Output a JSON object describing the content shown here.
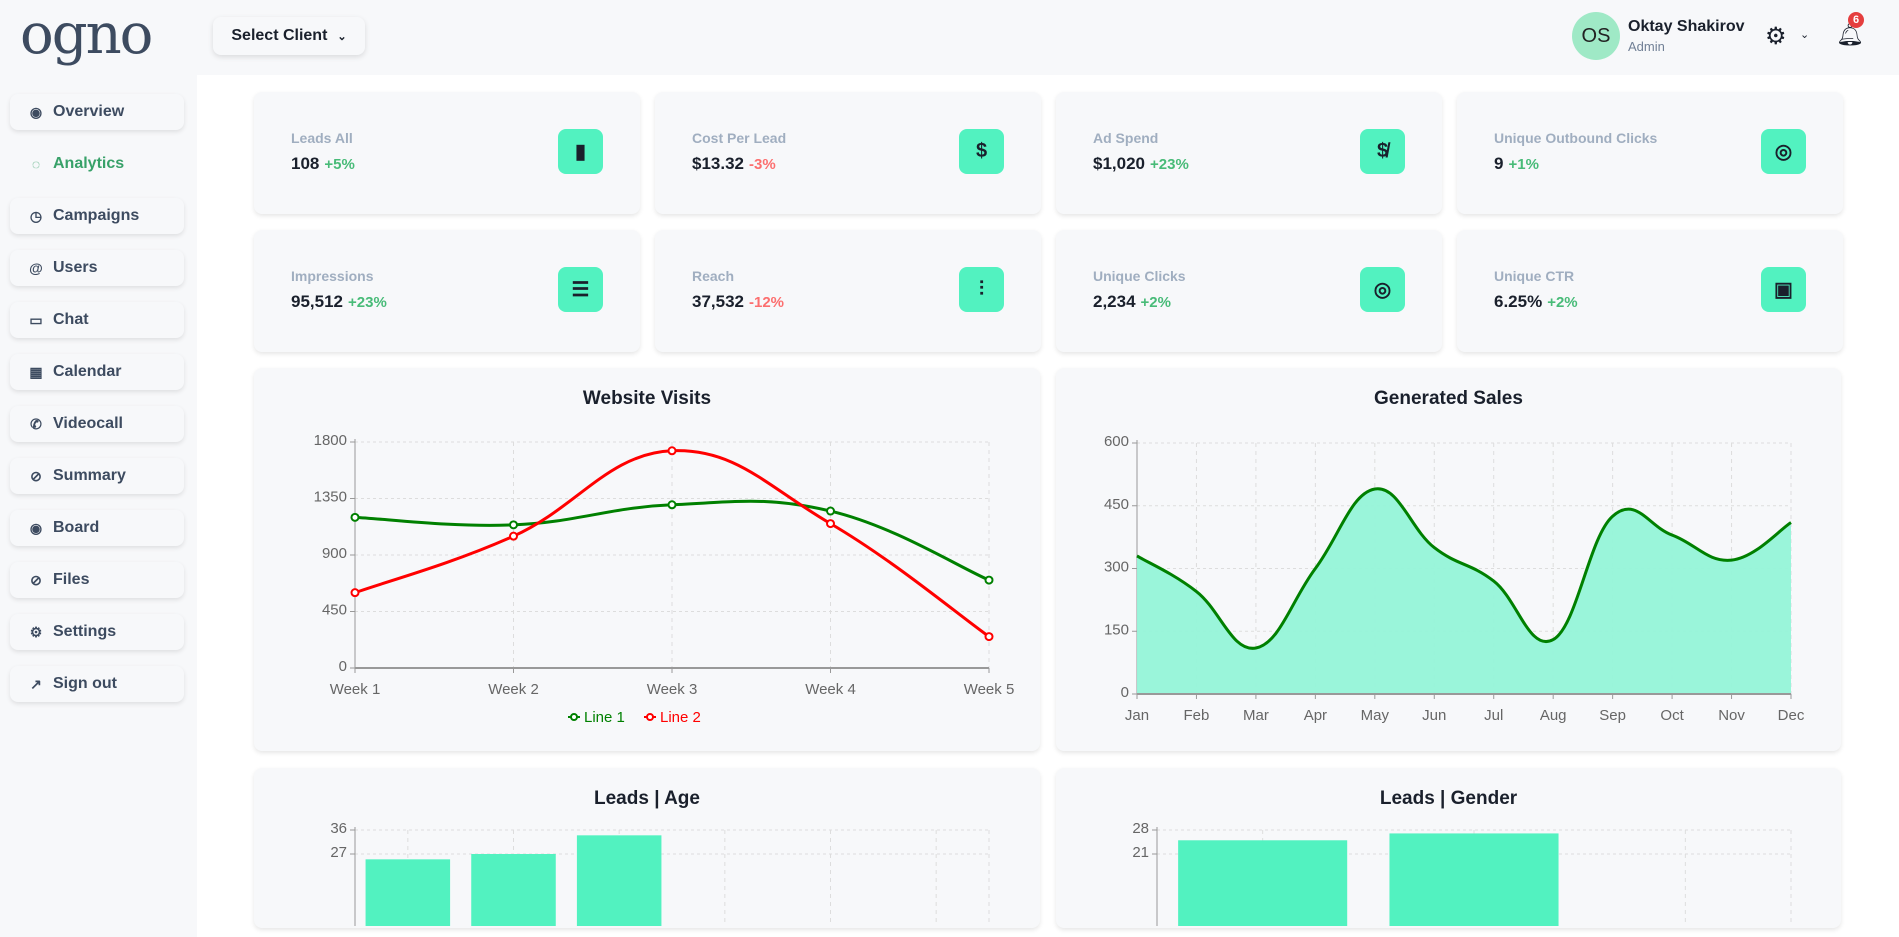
{
  "header": {
    "logo": "ogno",
    "select_client": "Select Client",
    "user": {
      "initials": "OS",
      "name": "Oktay Shakirov",
      "role": "Admin"
    },
    "notifications": "6"
  },
  "sidebar": {
    "items": [
      {
        "label": "Overview",
        "icon": "eye-icon",
        "glyph": "◉"
      },
      {
        "label": "Analytics",
        "icon": "loader-icon",
        "glyph": "◌",
        "active": true
      },
      {
        "label": "Campaigns",
        "icon": "clock-icon",
        "glyph": "◷"
      },
      {
        "label": "Users",
        "icon": "at-icon",
        "glyph": "@"
      },
      {
        "label": "Chat",
        "icon": "chat-icon",
        "glyph": "▭"
      },
      {
        "label": "Calendar",
        "icon": "calendar-icon",
        "glyph": "▦"
      },
      {
        "label": "Videocall",
        "icon": "phone-icon",
        "glyph": "✆"
      },
      {
        "label": "Summary",
        "icon": "paperclip-icon",
        "glyph": "⊘"
      },
      {
        "label": "Board",
        "icon": "eye-icon",
        "glyph": "◉"
      },
      {
        "label": "Files",
        "icon": "paperclip-icon",
        "glyph": "⊘"
      },
      {
        "label": "Settings",
        "icon": "gear-icon",
        "glyph": "⚙"
      },
      {
        "label": "Sign out",
        "icon": "external-link-icon",
        "glyph": "↗"
      }
    ]
  },
  "stats": [
    {
      "label": "Leads All",
      "value": "108",
      "change": "+5%",
      "trend": "pos",
      "icon": "bar-chart-icon",
      "glyph": "▮"
    },
    {
      "label": "Cost Per Lead",
      "value": "$13.32",
      "change": "-3%",
      "trend": "neg",
      "icon": "dollar-icon",
      "glyph": "$"
    },
    {
      "label": "Ad Spend",
      "value": "$1,020",
      "change": "+23%",
      "trend": "pos",
      "icon": "dollar-off-icon",
      "glyph": "$̸"
    },
    {
      "label": "Unique Outbound Clicks",
      "value": "9",
      "change": "+1%",
      "trend": "pos",
      "icon": "click-icon",
      "glyph": "◎"
    },
    {
      "label": "Impressions",
      "value": "95,512",
      "change": "+23%",
      "trend": "pos",
      "icon": "server-icon",
      "glyph": "☰"
    },
    {
      "label": "Reach",
      "value": "37,532",
      "change": "-12%",
      "trend": "neg",
      "icon": "bar-chart-alt-icon",
      "glyph": "⫶"
    },
    {
      "label": "Unique Clicks",
      "value": "2,234",
      "change": "+2%",
      "trend": "pos",
      "icon": "click-icon",
      "glyph": "◎"
    },
    {
      "label": "Unique CTR",
      "value": "6.25%",
      "change": "+2%",
      "trend": "pos",
      "icon": "chart-add-icon",
      "glyph": "▣"
    }
  ],
  "colors": {
    "accent": "#52f2c0",
    "line1": "#008000",
    "line2": "#ff0000",
    "area": "#95f4d8",
    "positive": "#48bb78",
    "negative": "#fc6f6f"
  },
  "chart_data": [
    {
      "type": "line",
      "title": "Website Visits",
      "categories": [
        "Week 1",
        "Week 2",
        "Week 3",
        "Week 4",
        "Week 5"
      ],
      "ylim": [
        0,
        1800
      ],
      "yticks": [
        0,
        450,
        900,
        1350,
        1800
      ],
      "grid": true,
      "legend": "bottom",
      "series": [
        {
          "name": "Line 1",
          "color": "#008000",
          "values": [
            1200,
            1140,
            1300,
            1250,
            700
          ]
        },
        {
          "name": "Line 2",
          "color": "#ff0000",
          "values": [
            600,
            1050,
            1730,
            1150,
            250
          ]
        }
      ]
    },
    {
      "type": "area",
      "title": "Generated Sales",
      "categories": [
        "Jan",
        "Feb",
        "Mar",
        "Apr",
        "May",
        "Jun",
        "Jul",
        "Aug",
        "Sep",
        "Oct",
        "Nov",
        "Dec"
      ],
      "ylim": [
        0,
        600
      ],
      "yticks": [
        0,
        150,
        300,
        450,
        600
      ],
      "grid": true,
      "series": [
        {
          "color": "#008000",
          "values": [
            330,
            245,
            110,
            300,
            490,
            350,
            270,
            130,
            425,
            380,
            320,
            410
          ]
        }
      ]
    },
    {
      "type": "bar",
      "title": "Leads | Age",
      "ylim": [
        0,
        36
      ],
      "yticks": [
        27,
        36
      ],
      "grid": true,
      "values": [
        25,
        27,
        34,
        0,
        0,
        0
      ]
    },
    {
      "type": "bar",
      "title": "Leads | Gender",
      "ylim": [
        0,
        28
      ],
      "yticks": [
        21,
        28
      ],
      "grid": true,
      "values": [
        25,
        27,
        0
      ]
    }
  ]
}
